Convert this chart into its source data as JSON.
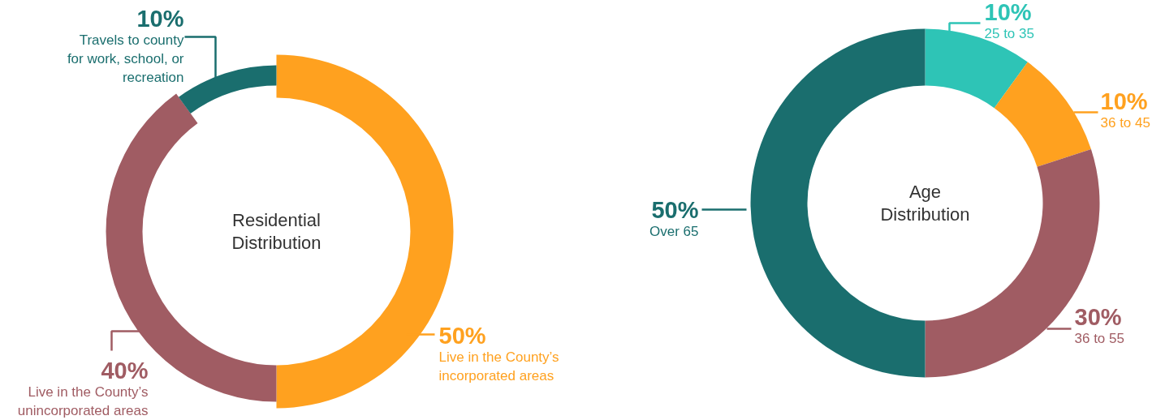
{
  "chart_data": [
    {
      "type": "donut",
      "title": "Residential Distribution",
      "categories": [
        "Live in the County’s incorporated areas",
        "Live in the County’s unincorporated areas",
        "Travels to county for work, school, or recreation"
      ],
      "values": [
        50,
        40,
        10
      ],
      "value_labels": [
        "50%",
        "40%",
        "10%"
      ],
      "colors": [
        "#ffa11f",
        "#a05c63",
        "#1a6e6e"
      ]
    },
    {
      "type": "donut",
      "title": "Age Distribution",
      "categories": [
        "25 to 35",
        "36 to 45",
        "36 to 55",
        "Over 65"
      ],
      "values": [
        10,
        10,
        30,
        50
      ],
      "value_labels": [
        "10%",
        "10%",
        "30%",
        "50%"
      ],
      "colors": [
        "#2ec4b6",
        "#ffa11f",
        "#a05c63",
        "#1a6e6e"
      ]
    }
  ]
}
